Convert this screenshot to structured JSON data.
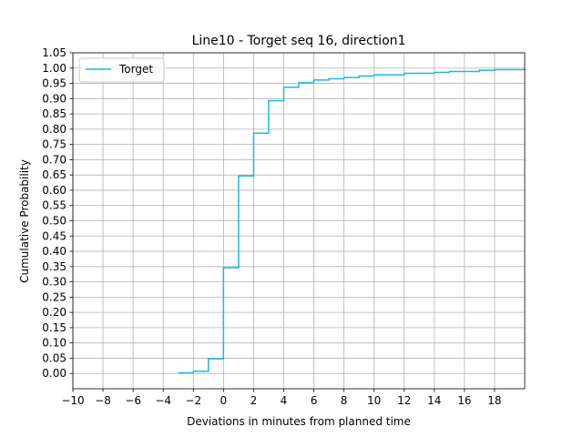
{
  "chart_data": {
    "type": "line",
    "step": "post",
    "title": "Line10 - Torget seq 16, direction1",
    "xlabel": "Deviations in minutes from planned time",
    "ylabel": "Cumulative Probability",
    "xlim": [
      -10,
      20
    ],
    "ylim": [
      -0.05,
      1.05
    ],
    "x_ticks": [
      -10,
      -8,
      -6,
      -4,
      -2,
      0,
      2,
      4,
      6,
      8,
      10,
      12,
      14,
      16,
      18
    ],
    "x_tick_labels": [
      "−10",
      "−8",
      "−6",
      "−4",
      "−2",
      "0",
      "2",
      "4",
      "6",
      "8",
      "10",
      "12",
      "14",
      "16",
      "18"
    ],
    "y_ticks": [
      0.0,
      0.05,
      0.1,
      0.15,
      0.2,
      0.25,
      0.3,
      0.35,
      0.4,
      0.45,
      0.5,
      0.55,
      0.6,
      0.65,
      0.7,
      0.75,
      0.8,
      0.85,
      0.9,
      0.95,
      1.0,
      1.05
    ],
    "y_tick_labels": [
      "0.00",
      "0.05",
      "0.10",
      "0.15",
      "0.20",
      "0.25",
      "0.30",
      "0.35",
      "0.40",
      "0.45",
      "0.50",
      "0.55",
      "0.60",
      "0.65",
      "0.70",
      "0.75",
      "0.80",
      "0.85",
      "0.90",
      "0.95",
      "1.00",
      "1.05"
    ],
    "grid": true,
    "legend_position": "upper-left",
    "series": [
      {
        "name": "Torget",
        "color": "#1cb8e6",
        "x": [
          -3,
          -2,
          -1,
          0,
          1,
          2,
          3,
          4,
          5,
          6,
          7,
          8,
          9,
          10,
          12,
          14,
          15,
          17,
          18,
          20
        ],
        "y": [
          0.002,
          0.007,
          0.048,
          0.346,
          0.647,
          0.787,
          0.893,
          0.937,
          0.952,
          0.961,
          0.965,
          0.969,
          0.974,
          0.978,
          0.983,
          0.986,
          0.989,
          0.993,
          0.995,
          0.997
        ]
      }
    ]
  }
}
